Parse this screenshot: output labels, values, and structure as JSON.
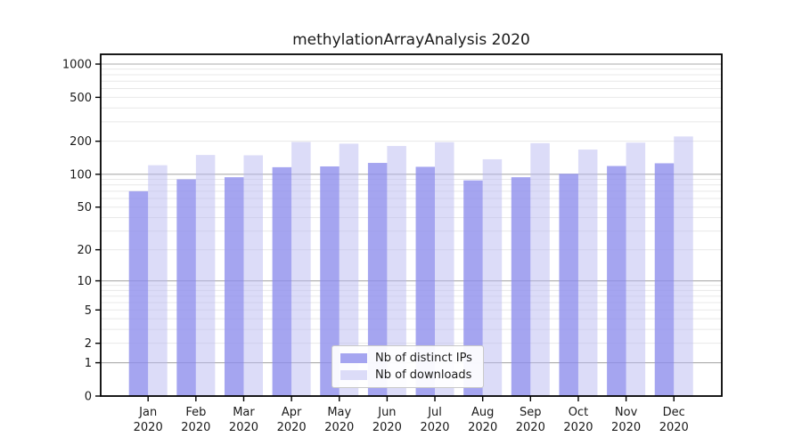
{
  "chart_data": {
    "type": "bar",
    "title": "methylationArrayAnalysis 2020",
    "categories": [
      "Jan",
      "Feb",
      "Mar",
      "Apr",
      "May",
      "Jun",
      "Jul",
      "Aug",
      "Sep",
      "Oct",
      "Nov",
      "Dec"
    ],
    "xtick_year": "2020",
    "series": [
      {
        "name": "Nb of distinct IPs",
        "legend_color": "#a5a5f0",
        "bar_fill": "#8e8eec",
        "bar_opacity": 0.8,
        "values": [
          70,
          90,
          94,
          116,
          118,
          127,
          117,
          88,
          94,
          101,
          119,
          126
        ]
      },
      {
        "name": "Nb of downloads",
        "legend_color": "#dcdcf8",
        "bar_fill": "#b9b9f1",
        "bar_opacity": 0.5,
        "values": [
          121,
          150,
          149,
          197,
          190,
          181,
          196,
          137,
          192,
          168,
          194,
          221
        ]
      }
    ],
    "yscale": "log10(1+x)",
    "ylim": [
      0,
      1230
    ],
    "yticks": [
      1000,
      500,
      200,
      100,
      50,
      20,
      10,
      5,
      2,
      1,
      0
    ],
    "major_gridlines": [
      1,
      10,
      100,
      1000
    ],
    "minor_gridlines": [
      2,
      3,
      4,
      5,
      6,
      7,
      8,
      9,
      20,
      30,
      40,
      50,
      60,
      70,
      80,
      90,
      200,
      300,
      400,
      500,
      600,
      700,
      800,
      900
    ],
    "grid": true,
    "legend_position": "bottom-center",
    "colors": {
      "axis_frame": "#000000",
      "major_grid": "#ababab",
      "minor_grid": "#e8e8e8",
      "tick_text": "#1a1a1a",
      "title_text": "#1a1a1a"
    },
    "xlabel": "",
    "ylabel": ""
  }
}
